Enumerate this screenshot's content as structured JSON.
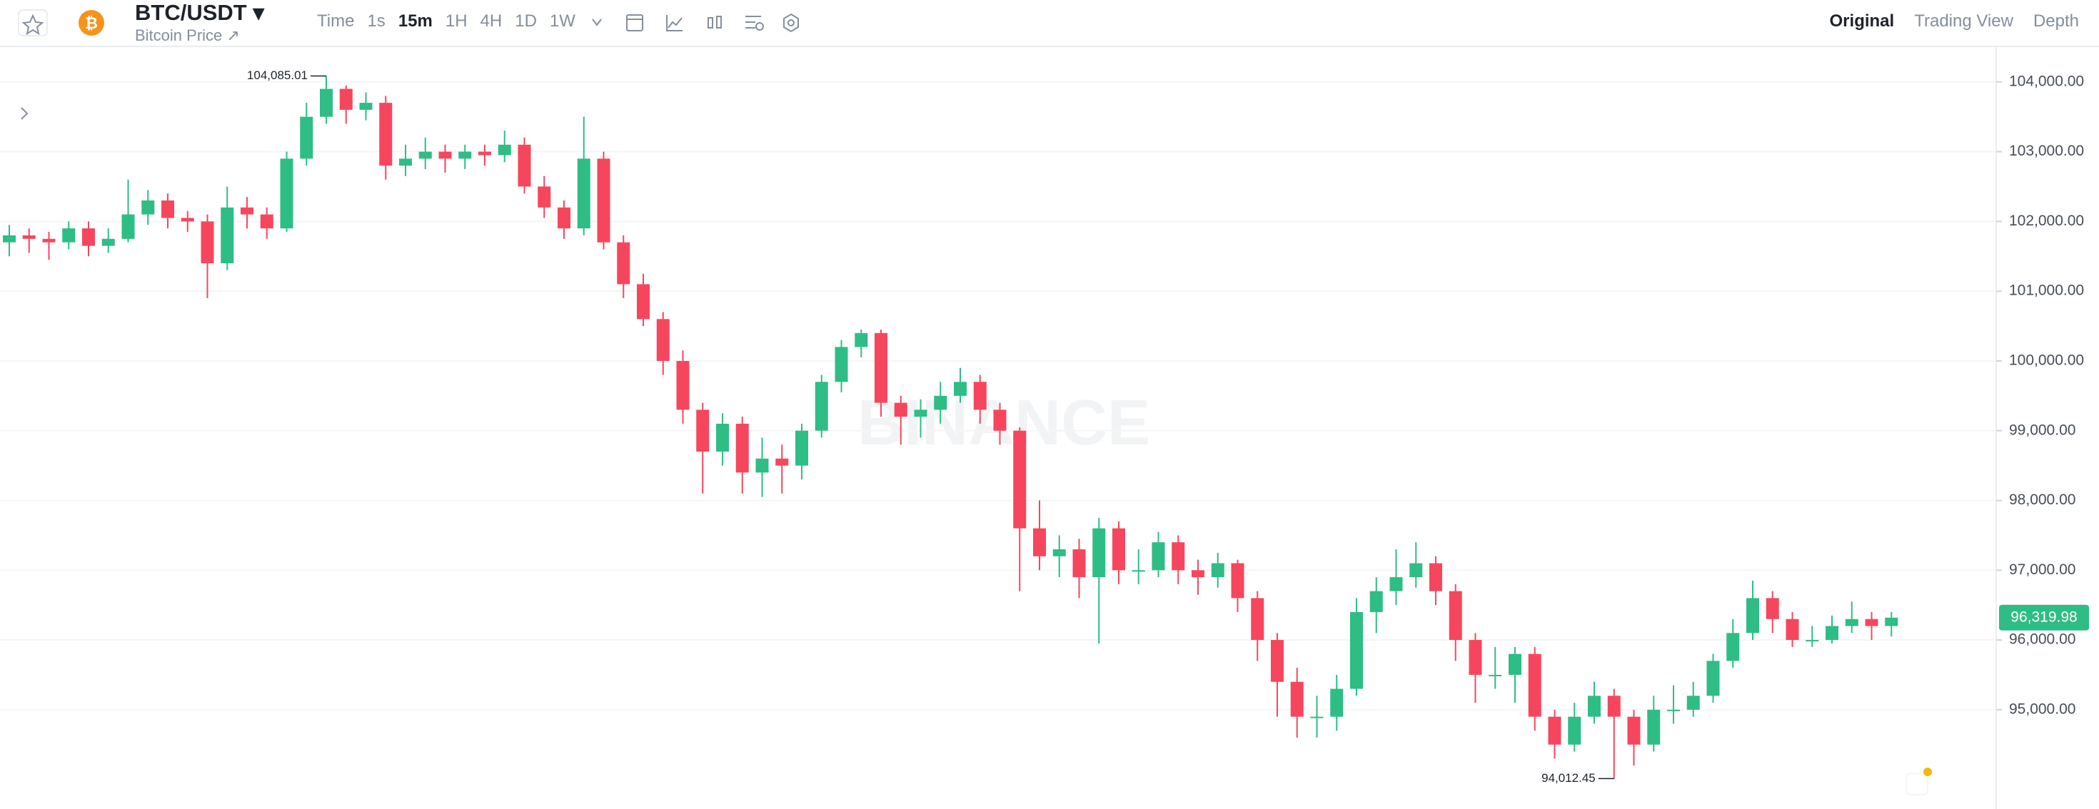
{
  "header": {
    "pair": "BTC/USDT",
    "subtitle": "Bitcoin Price",
    "intervals": [
      "Time",
      "1s",
      "15m",
      "1H",
      "4H",
      "1D",
      "1W"
    ],
    "tabs": [
      "Original",
      "Trading View",
      "Depth"
    ]
  },
  "chart_data": {
    "type": "candlestick",
    "watermark": "BINANCE",
    "up_color": "#2ebd85",
    "down_color": "#f6465d",
    "ylim": [
      93577,
      104499
    ],
    "yticks": [
      {
        "value": 95000,
        "label": "95,000.00"
      },
      {
        "value": 96000,
        "label": "96,000.00"
      },
      {
        "value": 97000,
        "label": "97,000.00"
      },
      {
        "value": 98000,
        "label": "98,000.00"
      },
      {
        "value": 99000,
        "label": "99,000.00"
      },
      {
        "value": 100000,
        "label": "100,000.00"
      },
      {
        "value": 101000,
        "label": "101,000.00"
      },
      {
        "value": 102000,
        "label": "102,000.00"
      },
      {
        "value": 103000,
        "label": "103,000.00"
      },
      {
        "value": 104000,
        "label": "104,000.00"
      }
    ],
    "grid": true,
    "last_price": {
      "value": 96319.98,
      "label": "96,319.98"
    },
    "high_label": {
      "value": 104085.01,
      "label": "104,085.01"
    },
    "low_label": {
      "value": 94012.45,
      "label": "94,012.45"
    },
    "candles": [
      [
        101700,
        101950,
        101500,
        101800
      ],
      [
        101800,
        101900,
        101550,
        101750
      ],
      [
        101750,
        101850,
        101450,
        101700
      ],
      [
        101700,
        102000,
        101600,
        101900
      ],
      [
        101900,
        102000,
        101500,
        101650
      ],
      [
        101650,
        101900,
        101550,
        101750
      ],
      [
        101750,
        102600,
        101700,
        102100
      ],
      [
        102100,
        102450,
        101950,
        102300
      ],
      [
        102300,
        102400,
        101900,
        102050
      ],
      [
        102050,
        102150,
        101850,
        102000
      ],
      [
        102000,
        102100,
        100900,
        101400
      ],
      [
        101400,
        102500,
        101300,
        102200
      ],
      [
        102200,
        102350,
        101900,
        102100
      ],
      [
        102100,
        102200,
        101750,
        101900
      ],
      [
        101900,
        103000,
        101850,
        102900
      ],
      [
        102900,
        103700,
        102800,
        103500
      ],
      [
        103500,
        104085.01,
        103400,
        103900
      ],
      [
        103900,
        103950,
        103400,
        103600
      ],
      [
        103600,
        103850,
        103450,
        103700
      ],
      [
        103700,
        103800,
        102600,
        102800
      ],
      [
        102800,
        103100,
        102650,
        102900
      ],
      [
        102900,
        103200,
        102750,
        103000
      ],
      [
        103000,
        103100,
        102700,
        102900
      ],
      [
        102900,
        103100,
        102750,
        103000
      ],
      [
        103000,
        103100,
        102800,
        102950
      ],
      [
        102950,
        103300,
        102850,
        103100
      ],
      [
        103100,
        103200,
        102400,
        102500
      ],
      [
        102500,
        102650,
        102050,
        102200
      ],
      [
        102200,
        102300,
        101750,
        101900
      ],
      [
        101900,
        103500,
        101800,
        102900
      ],
      [
        102900,
        103000,
        101600,
        101700
      ],
      [
        101700,
        101800,
        100900,
        101100
      ],
      [
        101100,
        101250,
        100500,
        100600
      ],
      [
        100600,
        100700,
        99800,
        100000
      ],
      [
        100000,
        100150,
        99100,
        99300
      ],
      [
        99300,
        99400,
        98100,
        98700
      ],
      [
        98700,
        99250,
        98500,
        99100
      ],
      [
        99100,
        99200,
        98100,
        98400
      ],
      [
        98400,
        98900,
        98050,
        98600
      ],
      [
        98600,
        98800,
        98100,
        98500
      ],
      [
        98500,
        99100,
        98300,
        99000
      ],
      [
        99000,
        99800,
        98900,
        99700
      ],
      [
        99700,
        100300,
        99550,
        100200
      ],
      [
        100200,
        100450,
        100050,
        100400
      ],
      [
        100400,
        100450,
        99200,
        99400
      ],
      [
        99400,
        99500,
        98800,
        99200
      ],
      [
        99200,
        99450,
        98900,
        99300
      ],
      [
        99300,
        99700,
        99100,
        99500
      ],
      [
        99500,
        99900,
        99400,
        99700
      ],
      [
        99700,
        99800,
        99100,
        99300
      ],
      [
        99300,
        99400,
        98800,
        99000
      ],
      [
        99000,
        99050,
        96700,
        97600
      ],
      [
        97600,
        98000,
        97000,
        97200
      ],
      [
        97200,
        97500,
        96900,
        97300
      ],
      [
        97300,
        97450,
        96600,
        96900
      ],
      [
        96900,
        97750,
        95950,
        97600
      ],
      [
        97600,
        97700,
        96800,
        97000
      ],
      [
        97000,
        97300,
        96800,
        97000
      ],
      [
        97000,
        97550,
        96900,
        97400
      ],
      [
        97400,
        97500,
        96800,
        97000
      ],
      [
        97000,
        97150,
        96650,
        96900
      ],
      [
        96900,
        97250,
        96750,
        97100
      ],
      [
        97100,
        97150,
        96400,
        96600
      ],
      [
        96600,
        96700,
        95700,
        96000
      ],
      [
        96000,
        96100,
        94900,
        95400
      ],
      [
        95400,
        95600,
        94600,
        94900
      ],
      [
        94900,
        95200,
        94600,
        94900
      ],
      [
        94900,
        95500,
        94700,
        95300
      ],
      [
        95300,
        96600,
        95200,
        96400
      ],
      [
        96400,
        96900,
        96100,
        96700
      ],
      [
        96700,
        97300,
        96500,
        96900
      ],
      [
        96900,
        97400,
        96750,
        97100
      ],
      [
        97100,
        97200,
        96500,
        96700
      ],
      [
        96700,
        96800,
        95700,
        96000
      ],
      [
        96000,
        96100,
        95100,
        95500
      ],
      [
        95500,
        95900,
        95300,
        95500
      ],
      [
        95500,
        95900,
        95100,
        95800
      ],
      [
        95800,
        95900,
        94700,
        94900
      ],
      [
        94900,
        95000,
        94300,
        94500
      ],
      [
        94500,
        95100,
        94400,
        94900
      ],
      [
        94900,
        95400,
        94800,
        95200
      ],
      [
        95200,
        95300,
        94012.45,
        94900
      ],
      [
        94900,
        95000,
        94200,
        94500
      ],
      [
        94500,
        95200,
        94400,
        95000
      ],
      [
        95000,
        95350,
        94800,
        95000
      ],
      [
        95000,
        95400,
        94900,
        95200
      ],
      [
        95200,
        95800,
        95100,
        95700
      ],
      [
        95700,
        96300,
        95600,
        96100
      ],
      [
        96100,
        96850,
        96000,
        96600
      ],
      [
        96600,
        96700,
        96100,
        96300
      ],
      [
        96300,
        96400,
        95900,
        96000
      ],
      [
        96000,
        96200,
        95900,
        96000
      ],
      [
        96000,
        96350,
        95950,
        96200
      ],
      [
        96200,
        96550,
        96100,
        96300
      ],
      [
        96300,
        96400,
        96000,
        96200
      ],
      [
        96200,
        96400,
        96050,
        96319.98
      ]
    ]
  }
}
